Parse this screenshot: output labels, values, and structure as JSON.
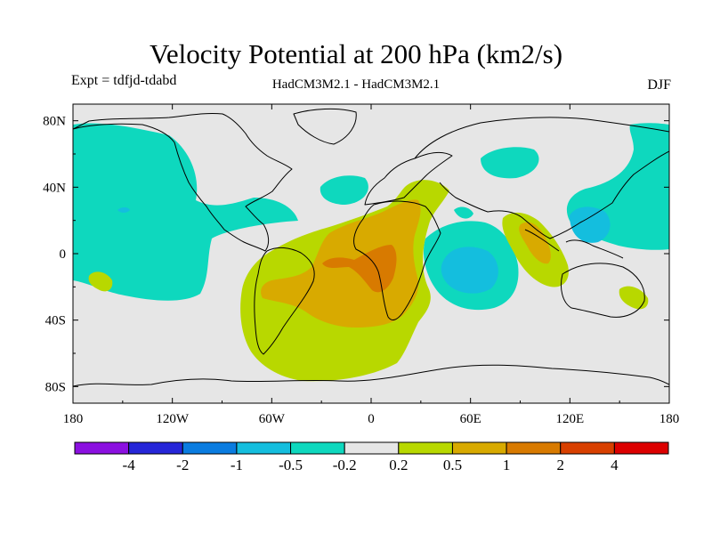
{
  "title": "Velocity Potential at 200 hPa (km2/s)",
  "expt_label": "Expt = tdfjd-tdabd",
  "model_label": "HadCM3M2.1 - HadCM3M2.1",
  "season_label": "DJF",
  "map": {
    "lon_range": [
      -180,
      180
    ],
    "lat_range": [
      -90,
      90
    ],
    "lon_ticks": [
      {
        "value": -180,
        "label": "180"
      },
      {
        "value": -120,
        "label": "120W"
      },
      {
        "value": -60,
        "label": "60W"
      },
      {
        "value": 0,
        "label": "0"
      },
      {
        "value": 60,
        "label": "60E"
      },
      {
        "value": 120,
        "label": "120E"
      },
      {
        "value": 180,
        "label": "180"
      }
    ],
    "lat_ticks": [
      {
        "value": 80,
        "label": "80N"
      },
      {
        "value": 40,
        "label": "40N"
      },
      {
        "value": 0,
        "label": "0"
      },
      {
        "value": -40,
        "label": "40S"
      },
      {
        "value": -80,
        "label": "80S"
      }
    ]
  },
  "colorbar": {
    "colors": [
      "#8b10e0",
      "#2626d8",
      "#0a7ce0",
      "#14bede",
      "#0ed8be",
      "#e6e6e6",
      "#b8d800",
      "#d8aa00",
      "#d87a00",
      "#d84000",
      "#dc0000"
    ],
    "labels": [
      "-4",
      "-2",
      "-1",
      "-0.5",
      "-0.2",
      "0.2",
      "0.5",
      "1",
      "2",
      "4"
    ]
  },
  "fill_colors": {
    "background": "#e6e6e6",
    "neg_weak": "#0ed8be",
    "neg_mid": "#14bede",
    "neg_strong": "#0a7ce0",
    "pos_weak": "#b8d800",
    "pos_mid": "#d8aa00",
    "pos_strong": "#d87a00"
  }
}
